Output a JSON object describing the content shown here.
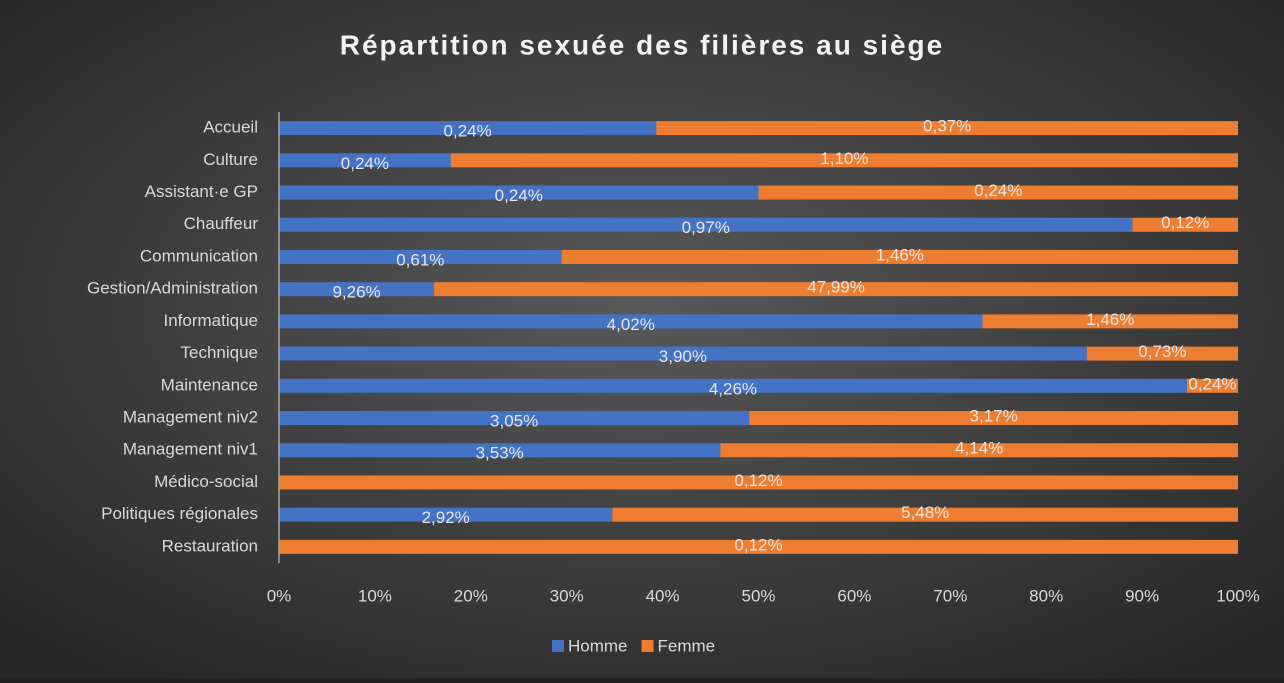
{
  "chart_data": {
    "type": "bar",
    "orientation": "horizontal",
    "stacking": "percent",
    "title": "Répartition sexuée des filières au siège",
    "categories": [
      "Accueil",
      "Culture",
      "Assistant·e GP",
      "Chauffeur",
      "Communication",
      "Gestion/Administration",
      "Informatique",
      "Technique",
      "Maintenance",
      "Management niv2",
      "Management niv1",
      "Médico-social",
      "Politiques régionales",
      "Restauration"
    ],
    "series": [
      {
        "name": "Homme",
        "color": "#4472c4",
        "values": [
          0.24,
          0.24,
          0.24,
          0.97,
          0.61,
          9.26,
          4.02,
          3.9,
          4.26,
          3.05,
          3.53,
          0,
          2.92,
          0
        ],
        "value_labels": [
          "0,24%",
          "0,24%",
          "0,24%",
          "0,97%",
          "0,61%",
          "9,26%",
          "4,02%",
          "3,90%",
          "4,26%",
          "3,05%",
          "3,53%",
          null,
          "2,92%",
          null
        ]
      },
      {
        "name": "Femme",
        "color": "#ed7d31",
        "values": [
          0.37,
          1.1,
          0.24,
          0.12,
          1.46,
          47.99,
          1.46,
          0.73,
          0.24,
          3.17,
          4.14,
          0.12,
          5.48,
          0.12
        ],
        "value_labels": [
          "0,37%",
          "1,10%",
          "0,24%",
          "0,12%",
          "1,46%",
          "47,99%",
          "1,46%",
          "0,73%",
          "0,24%",
          "3,17%",
          "4,14%",
          "0,12%",
          "5,48%",
          "0,12%"
        ]
      }
    ],
    "xlim": [
      0,
      100
    ],
    "xticks": [
      {
        "value": 0,
        "label": "0%"
      },
      {
        "value": 10,
        "label": "10%"
      },
      {
        "value": 20,
        "label": "20%"
      },
      {
        "value": 30,
        "label": "30%"
      },
      {
        "value": 40,
        "label": "40%"
      },
      {
        "value": 50,
        "label": "50%"
      },
      {
        "value": 60,
        "label": "60%"
      },
      {
        "value": 70,
        "label": "70%"
      },
      {
        "value": 80,
        "label": "80%"
      },
      {
        "value": 90,
        "label": "90%"
      },
      {
        "value": 100,
        "label": "100%"
      }
    ],
    "grid": false,
    "legend": "bottom"
  }
}
